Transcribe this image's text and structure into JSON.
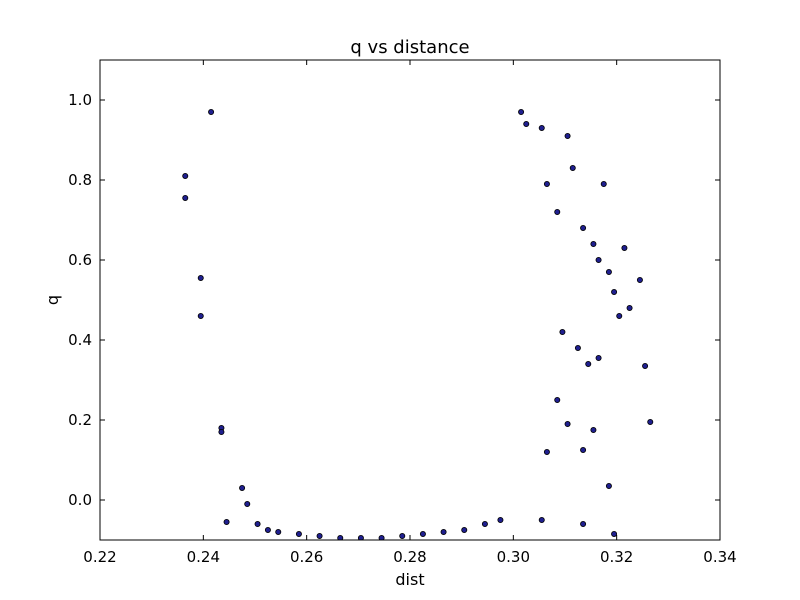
{
  "chart_data": {
    "type": "scatter",
    "title": "q vs distance",
    "xlabel": "dist",
    "ylabel": "q",
    "xlim": [
      0.22,
      0.34
    ],
    "ylim": [
      -0.1,
      1.1
    ],
    "x_ticks": [
      0.22,
      0.24,
      0.26,
      0.28,
      0.3,
      0.32,
      0.34
    ],
    "x_tick_labels": [
      "0.22",
      "0.24",
      "0.26",
      "0.28",
      "0.30",
      "0.32",
      "0.34"
    ],
    "y_ticks": [
      0.0,
      0.2,
      0.4,
      0.6,
      0.8,
      1.0
    ],
    "y_tick_labels": [
      "0.0",
      "0.2",
      "0.4",
      "0.6",
      "0.8",
      "1.0"
    ],
    "grid": false,
    "marker_face_color": "#1f1f8f",
    "marker_edge_color": "#000000",
    "series": [
      {
        "points": [
          [
            0.2365,
            0.81
          ],
          [
            0.2365,
            0.755
          ],
          [
            0.2395,
            0.555
          ],
          [
            0.2395,
            0.46
          ],
          [
            0.2415,
            0.97
          ],
          [
            0.2435,
            0.18
          ],
          [
            0.2435,
            0.17
          ],
          [
            0.2445,
            -0.055
          ],
          [
            0.2475,
            0.03
          ],
          [
            0.2485,
            -0.01
          ],
          [
            0.2505,
            -0.06
          ],
          [
            0.2525,
            -0.075
          ],
          [
            0.2545,
            -0.08
          ],
          [
            0.2585,
            -0.085
          ],
          [
            0.2625,
            -0.09
          ],
          [
            0.2665,
            -0.095
          ],
          [
            0.2705,
            -0.095
          ],
          [
            0.2745,
            -0.095
          ],
          [
            0.2785,
            -0.09
          ],
          [
            0.2825,
            -0.085
          ],
          [
            0.2865,
            -0.08
          ],
          [
            0.2905,
            -0.075
          ],
          [
            0.2945,
            -0.06
          ],
          [
            0.2975,
            -0.05
          ],
          [
            0.3015,
            0.97
          ],
          [
            0.3025,
            0.94
          ],
          [
            0.3055,
            0.93
          ],
          [
            0.3065,
            0.79
          ],
          [
            0.3085,
            0.72
          ],
          [
            0.3105,
            0.91
          ],
          [
            0.3115,
            0.83
          ],
          [
            0.3135,
            0.68
          ],
          [
            0.3155,
            0.64
          ],
          [
            0.3165,
            0.6
          ],
          [
            0.3185,
            0.57
          ],
          [
            0.3195,
            0.52
          ],
          [
            0.3175,
            0.79
          ],
          [
            0.3215,
            0.63
          ],
          [
            0.3225,
            0.48
          ],
          [
            0.3245,
            0.55
          ],
          [
            0.3255,
            0.335
          ],
          [
            0.3265,
            0.195
          ],
          [
            0.3205,
            0.46
          ],
          [
            0.3185,
            0.035
          ],
          [
            0.3195,
            -0.085
          ],
          [
            0.3135,
            -0.06
          ],
          [
            0.3055,
            -0.05
          ],
          [
            0.3095,
            0.42
          ],
          [
            0.3125,
            0.38
          ],
          [
            0.3145,
            0.34
          ],
          [
            0.3165,
            0.355
          ],
          [
            0.3085,
            0.25
          ],
          [
            0.3105,
            0.19
          ],
          [
            0.3065,
            0.12
          ],
          [
            0.3135,
            0.125
          ],
          [
            0.3155,
            0.175
          ]
        ]
      }
    ]
  }
}
